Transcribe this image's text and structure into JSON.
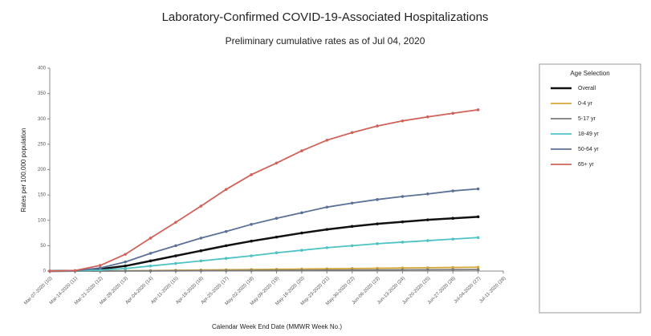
{
  "chart_data": {
    "type": "line",
    "title": "Laboratory-Confirmed COVID-19-Associated Hospitalizations",
    "subtitle": "Preliminary cumulative rates as of Jul 04, 2020",
    "x_label": "Calendar Week End Date (MMWR Week No.)",
    "y_label": "Rates per 100,000 population",
    "legend_title": "Age Selection",
    "legend": "right",
    "grid": false,
    "categories": [
      "Mar-07-2020 (10)",
      "Mar-14-2020 (11)",
      "Mar-21-2020 (12)",
      "Mar-28-2020 (13)",
      "Apr-04-2020 (14)",
      "Apr-11-2020 (15)",
      "Apr-18-2020 (16)",
      "Apr-25-2020 (17)",
      "May-02-2020 (18)",
      "May-09-2020 (19)",
      "May-16-2020 (20)",
      "May-23-2020 (21)",
      "May-30-2020 (22)",
      "Jun-06-2020 (23)",
      "Jun-13-2020 (24)",
      "Jun-20-2020 (25)",
      "Jun-27-2020 (26)",
      "Jul-04-2020 (27)",
      "Jul-11-2020 (28)"
    ],
    "ylim": [
      0,
      400
    ],
    "yticks": [
      0,
      50,
      100,
      150,
      200,
      250,
      300,
      350,
      400
    ],
    "series": [
      {
        "name": "Overall",
        "color": "#111111",
        "width": 2.5,
        "values": [
          0,
          0.3,
          4,
          10,
          20,
          30,
          40,
          50,
          59,
          67,
          75,
          82,
          88,
          93,
          97,
          101,
          104,
          107,
          null
        ]
      },
      {
        "name": "0-4 yr",
        "color": "#d4a737",
        "width": 1.8,
        "values": [
          0,
          0,
          0.1,
          0.5,
          1,
          1.5,
          2,
          2.5,
          3,
          3.5,
          4,
          4.5,
          5,
          5.5,
          6,
          6.5,
          7,
          7.5,
          null
        ]
      },
      {
        "name": "5-17 yr",
        "color": "#7a7a7a",
        "width": 1.8,
        "values": [
          0,
          0,
          0,
          0.2,
          0.3,
          0.5,
          0.7,
          0.9,
          1.1,
          1.3,
          1.5,
          1.7,
          1.9,
          2.1,
          2.3,
          2.5,
          2.7,
          2.9,
          null
        ]
      },
      {
        "name": "18-49 yr",
        "color": "#4ec2c4",
        "width": 1.8,
        "values": [
          0,
          0.2,
          2,
          5,
          10,
          15,
          20,
          25,
          30,
          36,
          41,
          46,
          50,
          54,
          57,
          60,
          63,
          66,
          null
        ]
      },
      {
        "name": "50-64 yr",
        "color": "#5b7197",
        "width": 1.8,
        "values": [
          0,
          0.5,
          6,
          18,
          35,
          50,
          65,
          78,
          92,
          104,
          115,
          126,
          134,
          141,
          147,
          152,
          158,
          162,
          null
        ]
      },
      {
        "name": "65+ yr",
        "color": "#d0625a",
        "width": 1.8,
        "values": [
          0,
          1,
          11,
          33,
          65,
          96,
          128,
          161,
          190,
          213,
          237,
          258,
          273,
          286,
          296,
          304,
          311,
          318,
          null
        ]
      }
    ]
  }
}
